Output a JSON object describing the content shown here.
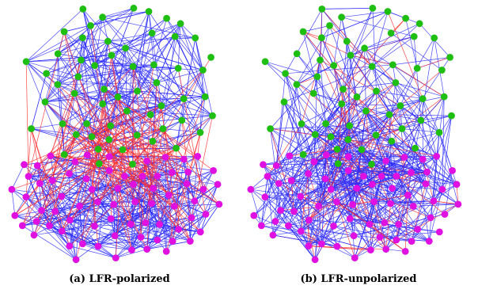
{
  "colors": {
    "green_node": "#1fbf12",
    "magenta_node": "#e010e0",
    "intra_edge": "#2b2bff",
    "inter_edge": "#ff2a2a"
  },
  "panels": [
    {
      "caption": "(a) LFR-polarized",
      "mode": "polarized"
    },
    {
      "caption": "(b) LFR-unpolarized",
      "mode": "unpolarized"
    }
  ]
}
